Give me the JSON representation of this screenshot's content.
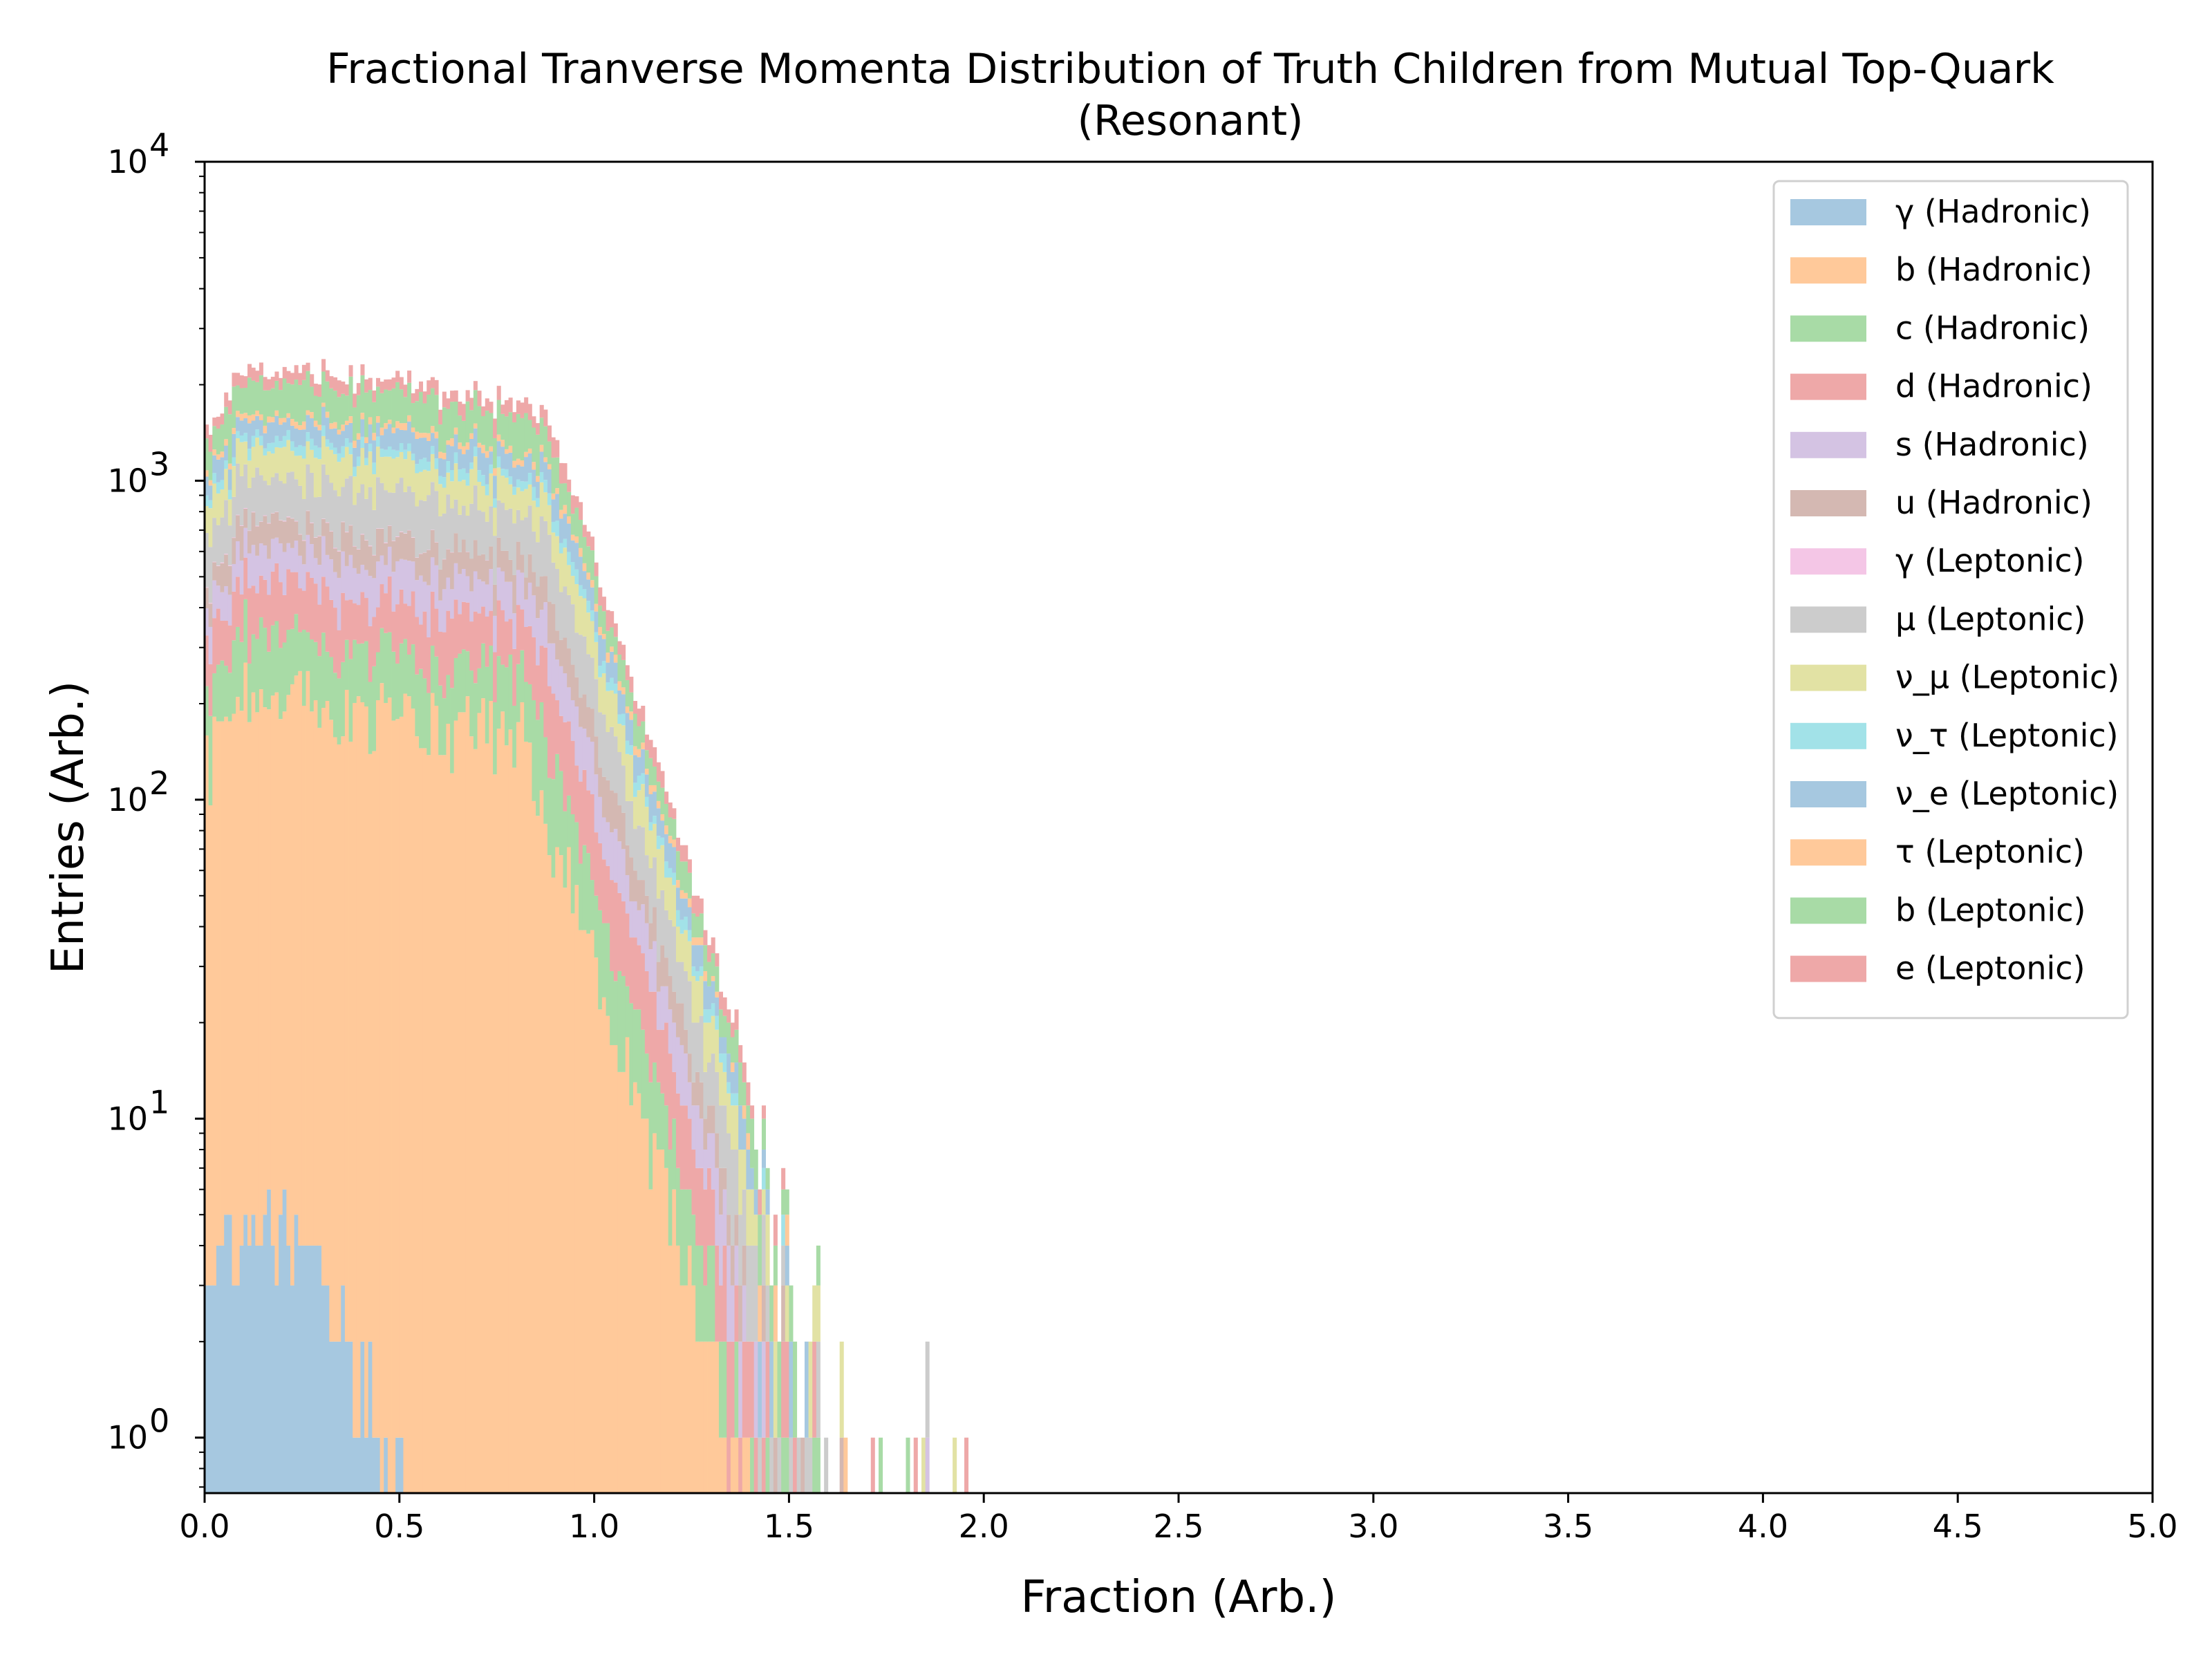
{
  "chart_data": {
    "type": "histogram",
    "title": "Fractional Tranverse Momenta Distribution of Truth Children from Mutual Top-Quark",
    "subtitle": "(Resonant)",
    "xlabel": "Fraction (Arb.)",
    "ylabel": "Entries (Arb.)",
    "xlim": [
      0,
      5
    ],
    "ylim": [
      0.67,
      10000
    ],
    "yscale": "log",
    "stacked": true,
    "xticks": [
      "0.0",
      "0.5",
      "1.0",
      "1.5",
      "2.0",
      "2.5",
      "3.0",
      "3.5",
      "4.0",
      "4.5",
      "5.0"
    ],
    "yticks": [
      {
        "base": "10",
        "exp": "0"
      },
      {
        "base": "10",
        "exp": "1"
      },
      {
        "base": "10",
        "exp": "2"
      },
      {
        "base": "10",
        "exp": "3"
      },
      {
        "base": "10",
        "exp": "4"
      }
    ],
    "legend_position": "upper right",
    "series": [
      {
        "name": "γ (Hadronic)",
        "color": "#a6c8e0",
        "peak": 5,
        "cutoff": 0.3
      },
      {
        "name": "b (Hadronic)",
        "color": "#ffc99a",
        "peak": 210,
        "cutoff": 0.82
      },
      {
        "name": "c (Hadronic)",
        "color": "#a8dba6",
        "peak": 120,
        "cutoff": 0.85
      },
      {
        "name": "d (Hadronic)",
        "color": "#eea8a8",
        "peak": 150,
        "cutoff": 0.88
      },
      {
        "name": "s (Hadronic)",
        "color": "#d4c3e3",
        "peak": 140,
        "cutoff": 0.88
      },
      {
        "name": "u (Hadronic)",
        "color": "#d4b8b2",
        "peak": 130,
        "cutoff": 0.88
      },
      {
        "name": "γ (Leptonic)",
        "color": "#f4c6e6",
        "peak": 3,
        "cutoff": 0.5
      },
      {
        "name": "μ (Leptonic)",
        "color": "#cccccc",
        "peak": 300,
        "cutoff": 0.88
      },
      {
        "name": "ν_μ (Leptonic)",
        "color": "#e2e2a4",
        "peak": 250,
        "cutoff": 0.9
      },
      {
        "name": "ν_τ (Leptonic)",
        "color": "#a2e2e8",
        "peak": 90,
        "cutoff": 0.9
      },
      {
        "name": "ν_e (Leptonic)",
        "color": "#a6c8e0",
        "peak": 200,
        "cutoff": 0.9
      },
      {
        "name": "τ (Leptonic)",
        "color": "#ffc99a",
        "peak": 70,
        "cutoff": 0.9
      },
      {
        "name": "b (Leptonic)",
        "color": "#a8dba6",
        "peak": 450,
        "cutoff": 0.85
      },
      {
        "name": "e (Leptonic)",
        "color": "#eea8a8",
        "peak": 200,
        "cutoff": 0.9
      }
    ]
  }
}
